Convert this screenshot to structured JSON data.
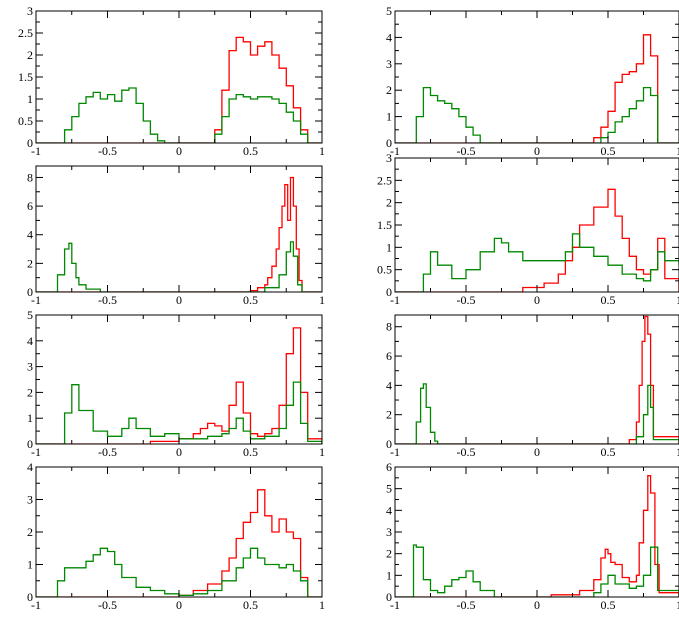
{
  "chart_data": [
    {
      "type": "line",
      "xlim": [
        -1,
        1
      ],
      "ylim": [
        0,
        3
      ],
      "xticks": [
        "-1",
        "-0.5",
        "0",
        "0.5",
        "1"
      ],
      "yticks": [
        "0",
        "0.5",
        "1",
        "1.5",
        "2",
        "2.5",
        "3"
      ],
      "series": [
        {
          "color": "#ff0000",
          "x": [
            -1,
            0.18,
            0.25,
            0.3,
            0.35,
            0.4,
            0.45,
            0.5,
            0.55,
            0.6,
            0.65,
            0.7,
            0.75,
            0.8,
            0.85,
            0.9,
            1.0
          ],
          "y": [
            0,
            0,
            0.3,
            1.2,
            2.1,
            2.4,
            2.3,
            2.0,
            2.2,
            2.3,
            2.0,
            1.7,
            1.3,
            0.8,
            0.3,
            0,
            0
          ]
        },
        {
          "color": "#008800",
          "x": [
            -1,
            -0.85,
            -0.8,
            -0.75,
            -0.7,
            -0.65,
            -0.6,
            -0.55,
            -0.5,
            -0.45,
            -0.4,
            -0.35,
            -0.3,
            -0.25,
            -0.2,
            -0.15,
            -0.1,
            0.18,
            0.25,
            0.3,
            0.35,
            0.4,
            0.45,
            0.5,
            0.55,
            0.6,
            0.65,
            0.7,
            0.75,
            0.8,
            0.85,
            0.9,
            1.0
          ],
          "y": [
            0,
            0,
            0.3,
            0.6,
            0.9,
            1.05,
            1.15,
            1.0,
            1.1,
            0.95,
            1.2,
            1.25,
            0.9,
            0.5,
            0.2,
            0.05,
            0,
            0,
            0.2,
            0.6,
            1.0,
            1.1,
            1.05,
            1.0,
            1.05,
            1.05,
            1.0,
            0.9,
            0.7,
            0.5,
            0.2,
            0,
            0
          ]
        }
      ]
    },
    {
      "type": "line",
      "xlim": [
        -1,
        1
      ],
      "ylim": [
        0,
        5
      ],
      "xticks": [
        "-1",
        "-0.5",
        "0",
        "0.5",
        "1"
      ],
      "yticks": [
        "0",
        "1",
        "2",
        "3",
        "4",
        "5"
      ],
      "series": [
        {
          "color": "#ff0000",
          "x": [
            -1,
            0.35,
            0.4,
            0.45,
            0.5,
            0.55,
            0.6,
            0.65,
            0.7,
            0.75,
            0.8,
            0.85,
            1.0
          ],
          "y": [
            0,
            0,
            0.2,
            0.6,
            1.2,
            2.3,
            2.6,
            2.7,
            3.0,
            4.1,
            3.3,
            0,
            0
          ]
        },
        {
          "color": "#008800",
          "x": [
            -1,
            -0.87,
            -0.85,
            -0.8,
            -0.75,
            -0.7,
            -0.65,
            -0.6,
            -0.55,
            -0.5,
            -0.45,
            -0.4,
            0.4,
            0.45,
            0.5,
            0.55,
            0.6,
            0.65,
            0.7,
            0.75,
            0.8,
            0.85,
            1.0
          ],
          "y": [
            0,
            0,
            1.0,
            2.1,
            1.8,
            1.6,
            1.5,
            1.3,
            1.0,
            0.6,
            0.3,
            0,
            0,
            0.2,
            0.4,
            0.8,
            1.0,
            1.3,
            1.6,
            2.1,
            1.8,
            0,
            0
          ]
        }
      ]
    },
    {
      "type": "line",
      "xlim": [
        -1,
        1
      ],
      "ylim": [
        0,
        8.8
      ],
      "xticks": [
        "-1",
        "-0.5",
        "0",
        "0.5",
        "1"
      ],
      "yticks": [
        "0",
        "2",
        "4",
        "6",
        "8"
      ],
      "series": [
        {
          "color": "#ff0000",
          "x": [
            -1,
            0.4,
            0.5,
            0.55,
            0.6,
            0.62,
            0.65,
            0.68,
            0.7,
            0.72,
            0.74,
            0.76,
            0.78,
            0.8,
            0.82,
            0.84,
            0.86,
            1.0
          ],
          "y": [
            0,
            0,
            0.1,
            0.3,
            0.5,
            1.0,
            1.8,
            3.0,
            4.5,
            6.0,
            7.5,
            5.0,
            8.0,
            6.0,
            3.0,
            0.8,
            0,
            0
          ]
        },
        {
          "color": "#008800",
          "x": [
            -1,
            -0.9,
            -0.85,
            -0.8,
            -0.77,
            -0.75,
            -0.72,
            -0.7,
            -0.65,
            -0.55,
            0.5,
            0.6,
            0.7,
            0.75,
            0.78,
            0.8,
            0.83,
            0.86,
            1.0
          ],
          "y": [
            0,
            0,
            1.2,
            3.0,
            3.4,
            2.0,
            1.0,
            0.5,
            0.2,
            0,
            0,
            0.3,
            1.2,
            2.8,
            3.5,
            2.5,
            0.5,
            0,
            0
          ]
        }
      ]
    },
    {
      "type": "line",
      "xlim": [
        -1,
        1
      ],
      "ylim": [
        0,
        3
      ],
      "xticks": [
        "-1",
        "-0.5",
        "0",
        "0.5",
        "1"
      ],
      "yticks": [
        "0",
        "0.5",
        "1",
        "1.5",
        "2",
        "2.5",
        "3"
      ],
      "series": [
        {
          "color": "#ff0000",
          "x": [
            -1,
            -0.3,
            -0.1,
            0.05,
            0.15,
            0.2,
            0.25,
            0.3,
            0.4,
            0.5,
            0.55,
            0.6,
            0.65,
            0.7,
            0.75,
            0.8,
            0.85,
            0.9,
            1.0
          ],
          "y": [
            0,
            0,
            0.1,
            0.2,
            0.4,
            0.7,
            1.0,
            1.5,
            1.9,
            2.3,
            1.7,
            1.2,
            0.8,
            0.5,
            0.4,
            0.5,
            1.2,
            0.3,
            0
          ]
        },
        {
          "color": "#008800",
          "x": [
            -1,
            -0.85,
            -0.8,
            -0.75,
            -0.7,
            -0.6,
            -0.5,
            -0.4,
            -0.3,
            -0.25,
            -0.2,
            -0.1,
            0.0,
            0.1,
            0.2,
            0.25,
            0.3,
            0.4,
            0.5,
            0.6,
            0.7,
            0.75,
            0.8,
            0.85,
            0.9,
            1.0
          ],
          "y": [
            0,
            0,
            0.4,
            0.9,
            0.6,
            0.3,
            0.5,
            0.9,
            1.2,
            1.1,
            0.9,
            0.7,
            0.7,
            0.7,
            0.9,
            1.3,
            1.0,
            0.8,
            0.6,
            0.4,
            0.3,
            0.25,
            0.5,
            0.9,
            0.7,
            0.6
          ]
        }
      ]
    },
    {
      "type": "line",
      "xlim": [
        -1,
        1
      ],
      "ylim": [
        0,
        5
      ],
      "xticks": [
        "-1",
        "-0.5",
        "0",
        "0.5",
        "1"
      ],
      "yticks": [
        "0",
        "1",
        "2",
        "3",
        "4",
        "5"
      ],
      "series": [
        {
          "color": "#ff0000",
          "x": [
            -1,
            -0.4,
            -0.2,
            0.0,
            0.1,
            0.15,
            0.2,
            0.25,
            0.3,
            0.35,
            0.4,
            0.45,
            0.5,
            0.55,
            0.6,
            0.65,
            0.7,
            0.75,
            0.8,
            0.85,
            0.9,
            1.0
          ],
          "y": [
            0,
            0,
            0.1,
            0.2,
            0.4,
            0.6,
            0.8,
            0.7,
            0.5,
            1.5,
            2.4,
            1.2,
            0.4,
            0.3,
            0.4,
            0.6,
            1.5,
            3.5,
            4.5,
            2.0,
            0.2,
            0
          ]
        },
        {
          "color": "#008800",
          "x": [
            -1,
            -0.85,
            -0.8,
            -0.75,
            -0.7,
            -0.6,
            -0.5,
            -0.4,
            -0.35,
            -0.3,
            -0.2,
            -0.1,
            0.0,
            0.1,
            0.2,
            0.3,
            0.35,
            0.4,
            0.45,
            0.5,
            0.6,
            0.7,
            0.75,
            0.8,
            0.85,
            0.9,
            1.0
          ],
          "y": [
            0,
            0,
            1.2,
            2.3,
            1.3,
            0.5,
            0.3,
            0.6,
            1.0,
            0.6,
            0.3,
            0.4,
            0.2,
            0.2,
            0.3,
            0.4,
            0.6,
            1.0,
            0.5,
            0.2,
            0.3,
            0.6,
            1.5,
            2.4,
            0.8,
            0.1,
            0
          ]
        }
      ]
    },
    {
      "type": "line",
      "xlim": [
        -1,
        1
      ],
      "ylim": [
        0,
        8.8
      ],
      "xticks": [
        "-1",
        "-0.5",
        "0",
        "0.5",
        "1"
      ],
      "yticks": [
        "0",
        "2",
        "4",
        "6",
        "8"
      ],
      "series": [
        {
          "color": "#ff0000",
          "x": [
            -1,
            0.6,
            0.65,
            0.7,
            0.72,
            0.74,
            0.76,
            0.78,
            0.8,
            0.82,
            1.0
          ],
          "y": [
            0,
            0,
            0.3,
            1.5,
            4.0,
            7.0,
            8.7,
            7.5,
            4.0,
            0.5,
            0
          ]
        },
        {
          "color": "#008800",
          "x": [
            -1,
            -0.87,
            -0.85,
            -0.82,
            -0.8,
            -0.78,
            -0.75,
            -0.72,
            -0.7,
            0.6,
            0.7,
            0.75,
            0.78,
            0.8,
            0.82,
            1.0
          ],
          "y": [
            0,
            0,
            1.5,
            3.8,
            4.1,
            2.5,
            0.8,
            0.2,
            0,
            0,
            0.5,
            2.0,
            4.0,
            2.5,
            0.3,
            0
          ]
        }
      ]
    },
    {
      "type": "line",
      "xlim": [
        -1,
        1
      ],
      "ylim": [
        0,
        4
      ],
      "xticks": [
        "-1",
        "-0.5",
        "0",
        "0.5",
        "1"
      ],
      "yticks": [
        "0",
        "1",
        "2",
        "3",
        "4"
      ],
      "series": [
        {
          "color": "#ff0000",
          "x": [
            -1,
            -0.1,
            0.0,
            0.1,
            0.2,
            0.3,
            0.35,
            0.4,
            0.45,
            0.5,
            0.55,
            0.6,
            0.65,
            0.7,
            0.75,
            0.8,
            0.85,
            0.9,
            1.0
          ],
          "y": [
            0,
            0,
            0.05,
            0.2,
            0.4,
            0.8,
            1.2,
            1.8,
            2.3,
            2.6,
            3.3,
            2.5,
            2.0,
            2.4,
            2.0,
            1.8,
            0.6,
            0,
            0
          ]
        },
        {
          "color": "#008800",
          "x": [
            -1,
            -0.9,
            -0.85,
            -0.8,
            -0.75,
            -0.7,
            -0.65,
            -0.6,
            -0.55,
            -0.5,
            -0.45,
            -0.4,
            -0.3,
            -0.2,
            -0.1,
            0.0,
            0.1,
            0.2,
            0.3,
            0.4,
            0.45,
            0.5,
            0.55,
            0.6,
            0.65,
            0.7,
            0.75,
            0.8,
            0.85,
            0.9,
            1.0
          ],
          "y": [
            0,
            0,
            0.5,
            0.9,
            0.9,
            0.9,
            1.1,
            1.3,
            1.5,
            1.4,
            1.0,
            0.6,
            0.3,
            0.2,
            0.1,
            0.05,
            0.1,
            0.2,
            0.5,
            0.9,
            1.2,
            1.5,
            1.2,
            1.0,
            1.0,
            0.9,
            1.0,
            0.8,
            0.5,
            0,
            0
          ]
        }
      ]
    },
    {
      "type": "line",
      "xlim": [
        -1,
        1
      ],
      "ylim": [
        0,
        6
      ],
      "xticks": [
        "-1",
        "-0.5",
        "0",
        "0.5",
        "1"
      ],
      "yticks": [
        "0",
        "1",
        "2",
        "3",
        "4",
        "5",
        "6"
      ],
      "series": [
        {
          "color": "#ff0000",
          "x": [
            -1,
            -0.1,
            0.1,
            0.3,
            0.4,
            0.45,
            0.48,
            0.5,
            0.52,
            0.55,
            0.6,
            0.65,
            0.7,
            0.72,
            0.75,
            0.78,
            0.8,
            0.83,
            0.86,
            1.0
          ],
          "y": [
            0,
            0,
            0.1,
            0.3,
            0.8,
            1.8,
            2.2,
            2.0,
            1.6,
            1.5,
            0.9,
            0.7,
            1.0,
            2.5,
            4.0,
            5.6,
            4.8,
            1.5,
            0.2,
            0
          ]
        },
        {
          "color": "#008800",
          "x": [
            -1,
            -0.9,
            -0.87,
            -0.85,
            -0.8,
            -0.75,
            -0.7,
            -0.65,
            -0.6,
            -0.55,
            -0.5,
            -0.45,
            -0.4,
            -0.3,
            0.3,
            0.4,
            0.45,
            0.5,
            0.55,
            0.6,
            0.65,
            0.7,
            0.75,
            0.8,
            0.85,
            1.0
          ],
          "y": [
            0,
            0,
            2.4,
            2.3,
            0.8,
            0.3,
            0.2,
            0.5,
            0.8,
            0.9,
            1.2,
            0.7,
            0.3,
            0,
            0,
            0.2,
            0.6,
            1.0,
            0.6,
            0.6,
            0.4,
            0.5,
            1.0,
            2.3,
            0.3,
            0
          ]
        }
      ]
    }
  ]
}
